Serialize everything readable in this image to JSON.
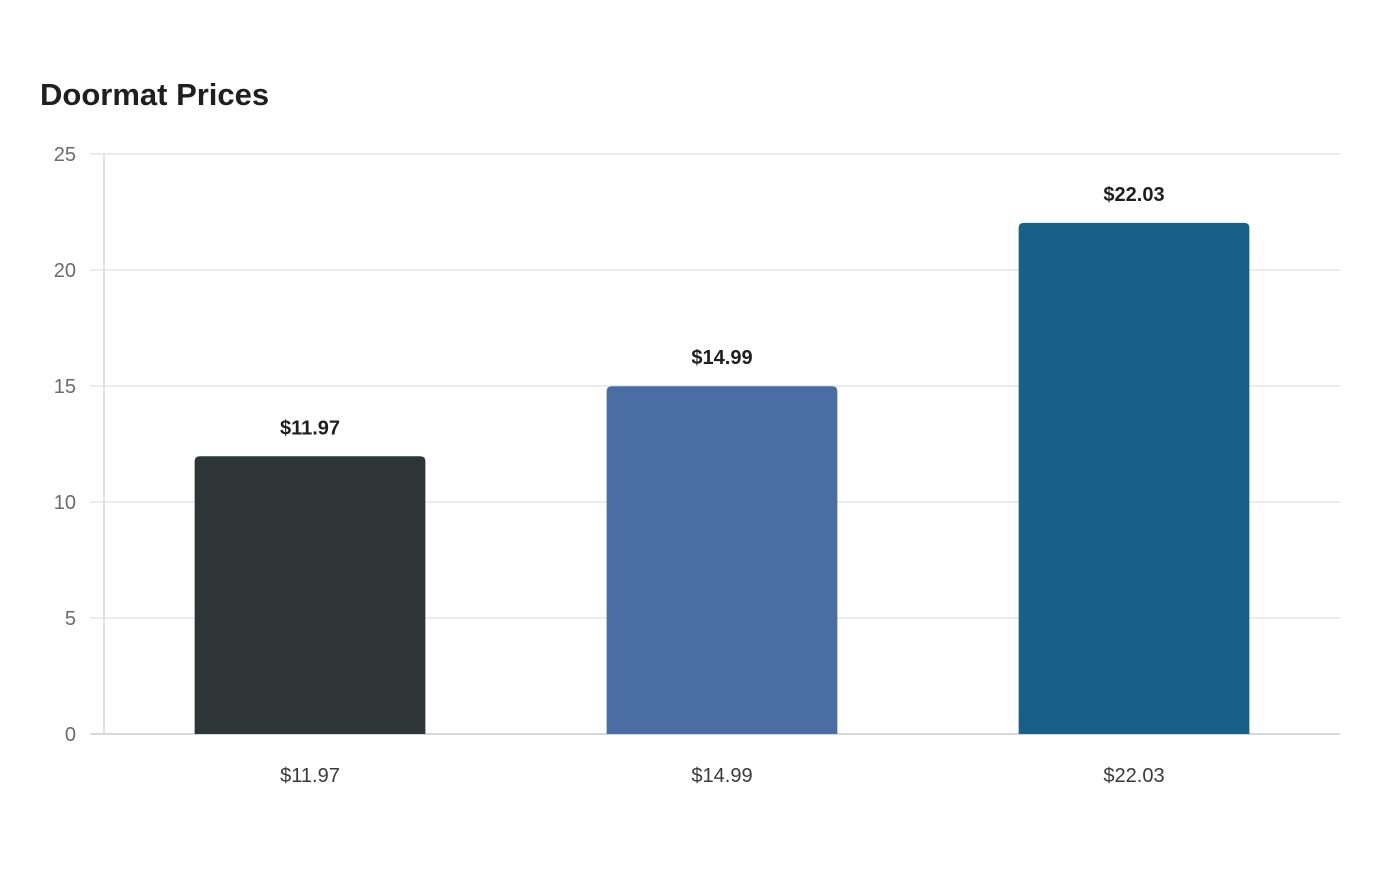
{
  "chart_data": {
    "type": "bar",
    "title": "Doormat Prices",
    "xlabel": "",
    "ylabel": "",
    "categories": [
      "$11.97",
      "$14.99",
      "$22.03"
    ],
    "values": [
      11.97,
      14.99,
      22.03
    ],
    "data_labels": [
      "$11.97",
      "$14.99",
      "$22.03"
    ],
    "colors": [
      "#2e3537",
      "#4a6ea3",
      "#186087"
    ],
    "ylim": [
      0,
      25
    ],
    "yticks": [
      0,
      5,
      10,
      15,
      20,
      25
    ],
    "grid": true,
    "legend": "none"
  }
}
